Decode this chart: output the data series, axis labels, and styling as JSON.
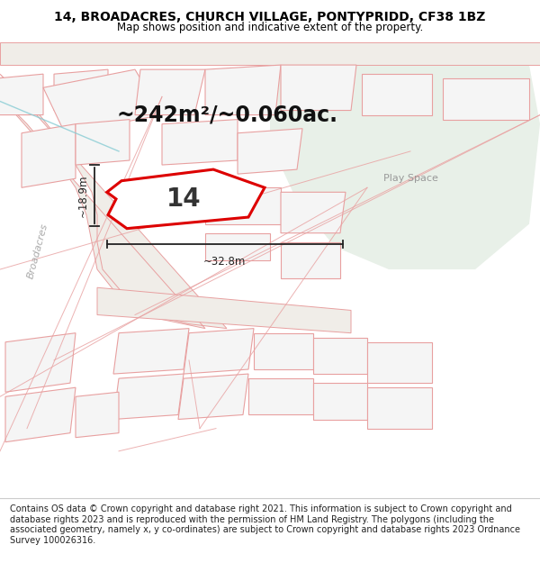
{
  "title_line1": "14, BROADACRES, CHURCH VILLAGE, PONTYPRIDD, CF38 1BZ",
  "title_line2": "Map shows position and indicative extent of the property.",
  "area_text": "~242m²/~0.060ac.",
  "label_14": "14",
  "label_broadacres": "Broadacres",
  "label_play_space": "Play Space",
  "dim_width": "~32.8m",
  "dim_height": "~18.9m",
  "footer_text": "Contains OS data © Crown copyright and database right 2021. This information is subject to Crown copyright and database rights 2023 and is reproduced with the permission of HM Land Registry. The polygons (including the associated geometry, namely x, y co-ordinates) are subject to Crown copyright and database rights 2023 Ordnance Survey 100026316.",
  "map_bg": "#f7f7f5",
  "play_space_fill": "#e8f0e8",
  "plot_fill": "white",
  "plot_edge": "#dd0000",
  "building_edge": "#e8a0a0",
  "building_fill": "#f5f5f5",
  "road_fill": "#f0ede8",
  "road_edge": "#e8a0a0",
  "dim_color": "#222222",
  "street_color": "#aaaaaa",
  "title_fontsize": 10,
  "subtitle_fontsize": 8.5,
  "area_fontsize": 17,
  "label_14_fontsize": 20,
  "footer_fontsize": 7.0,
  "play_space_fontsize": 8
}
